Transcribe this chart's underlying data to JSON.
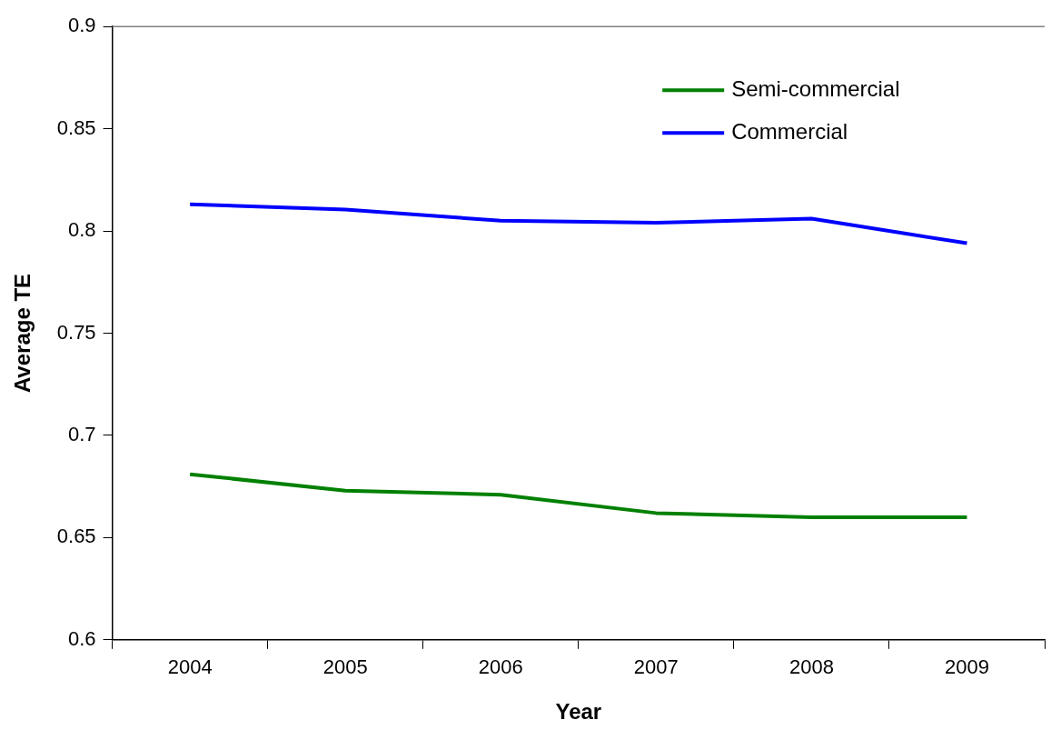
{
  "chart_data": {
    "type": "line",
    "xlabel": "Year",
    "ylabel": "Average TE",
    "categories": [
      "2004",
      "2005",
      "2006",
      "2007",
      "2008",
      "2009"
    ],
    "series": [
      {
        "name": "Semi-commercial",
        "color": "#008000",
        "values": [
          0.681,
          0.673,
          0.671,
          0.662,
          0.66,
          0.66
        ]
      },
      {
        "name": "Commercial",
        "color": "#0000ff",
        "values": [
          0.813,
          0.8105,
          0.805,
          0.804,
          0.806,
          0.794
        ]
      }
    ],
    "ylim": [
      0.6,
      0.9
    ],
    "yticks": [
      0.6,
      0.65,
      0.7,
      0.75,
      0.8,
      0.85,
      0.9
    ],
    "grid": false,
    "legend": "top right",
    "marker": "none",
    "line_style": "solid"
  }
}
